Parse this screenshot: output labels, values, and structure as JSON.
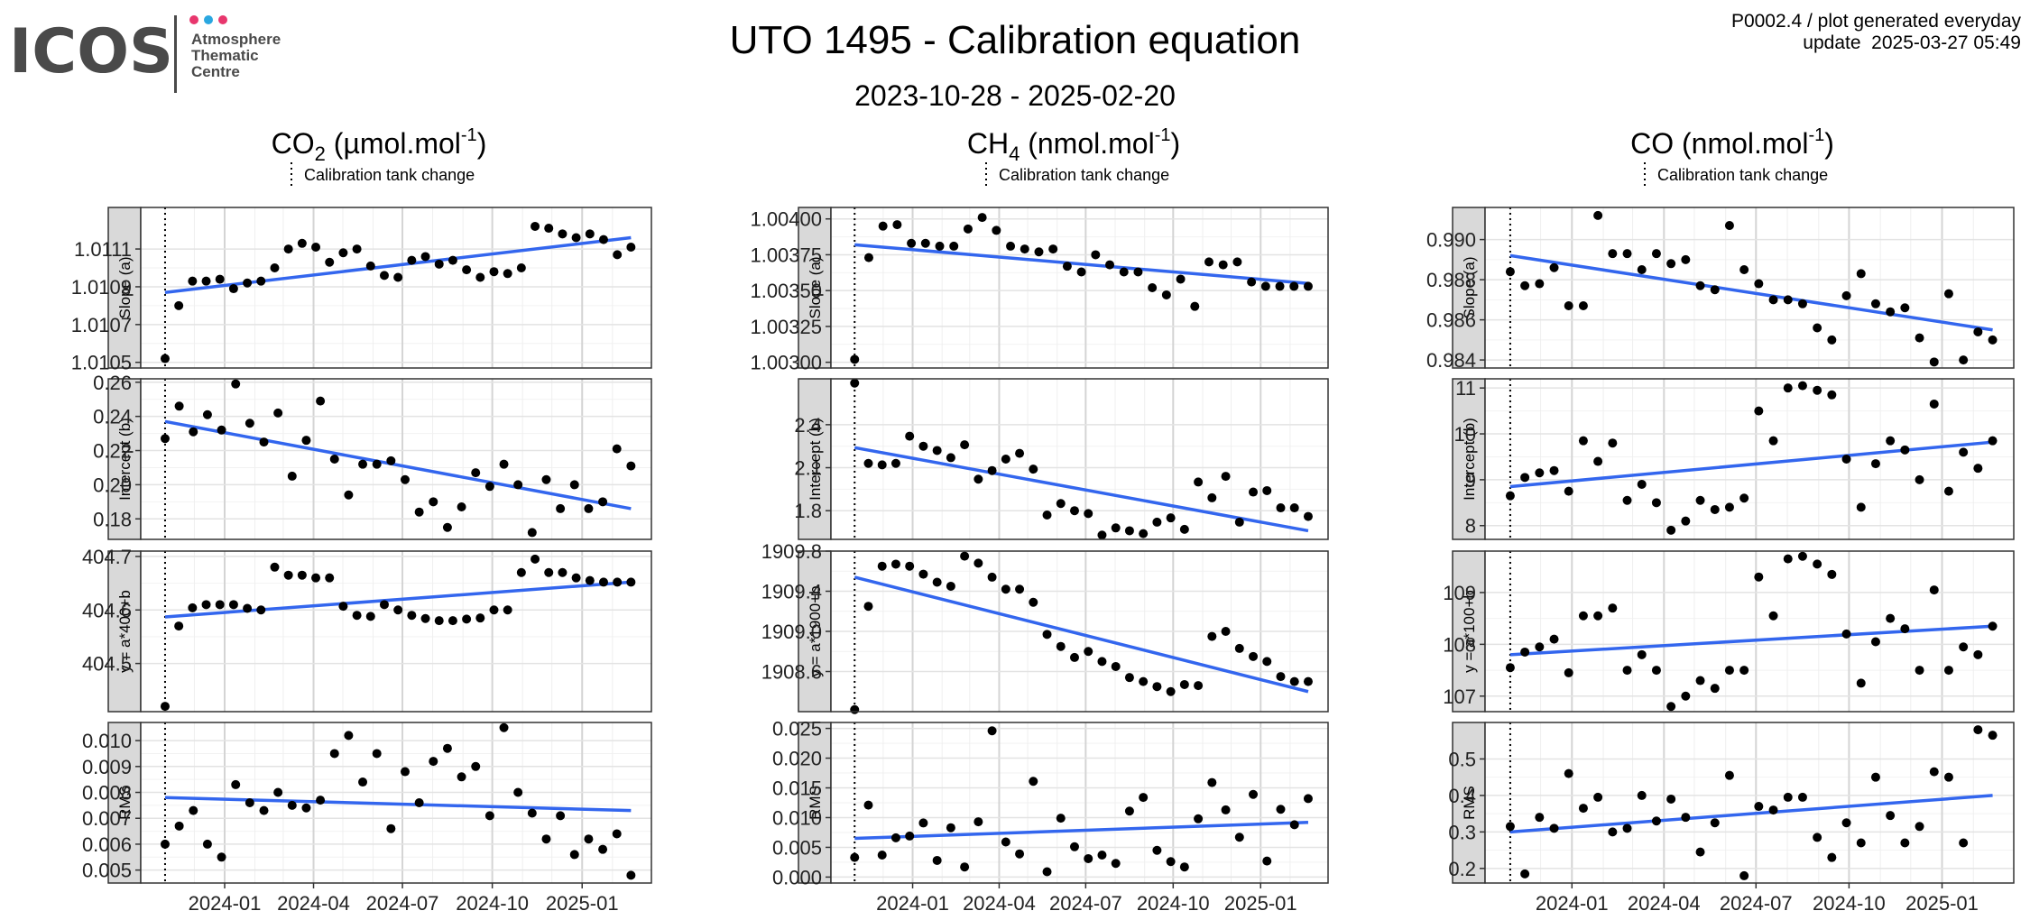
{
  "header": {
    "title": "UTO 1495 - Calibration equation",
    "subtitle": "2023-10-28 - 2025-02-20",
    "product_line": "P0002.4 / plot generated everyday",
    "update_line": "update  2025-03-27 05:49",
    "logo_text": "ICOS",
    "logo_subtext": [
      "Atmosphere",
      "Thematic",
      "Centre"
    ],
    "logo_dot_colors": [
      "#e8366d",
      "#2aa7e0",
      "#e8366d"
    ]
  },
  "legend_label": "Calibration tank change",
  "colors": {
    "fit_line": "#3366ee",
    "points": "#000000",
    "strip": "#d9d9d9",
    "grid": "#ebebeb"
  },
  "chart_data": {
    "type": "scatter",
    "x_axis": {
      "start": "2023-10-28",
      "end": "2025-02-20",
      "tick_labels": [
        "2024-01",
        "2024-04",
        "2024-07",
        "2024-10",
        "2025-01"
      ]
    },
    "calibration_tank_change": "2023-11-01",
    "columns": [
      {
        "species": "CO",
        "subscript": "2",
        "unit": "µmol.mol",
        "unit_exp": "-1",
        "rows": [
          {
            "strip": "Slope (a)",
            "ylim": [
              1.01047,
              1.01132
            ],
            "ticks": [
              1.0105,
              1.0107,
              1.0109,
              1.0111
            ],
            "fmt": 4,
            "fit": [
              1.01087,
              1.01116
            ],
            "values": [
              1.01052,
              1.0108,
              1.01093,
              1.01093,
              1.01094,
              1.01089,
              1.01092,
              1.01093,
              1.011,
              1.0111,
              1.01113,
              1.01111,
              1.01103,
              1.01108,
              1.0111,
              1.01101,
              1.01096,
              1.01095,
              1.01104,
              1.01106,
              1.01102,
              1.01104,
              1.01099,
              1.01095,
              1.01098,
              1.01097,
              1.011,
              1.01122,
              1.01121,
              1.01118,
              1.01116,
              1.01118,
              1.01115,
              1.01107,
              1.01111
            ]
          },
          {
            "strip": "Intercept (b)",
            "ylim": [
              0.168,
              0.262
            ],
            "ticks": [
              0.18,
              0.2,
              0.22,
              0.24,
              0.26
            ],
            "fmt": 2,
            "fit": [
              0.237,
              0.186
            ],
            "values": [
              0.227,
              0.246,
              0.231,
              0.241,
              0.232,
              0.259,
              0.236,
              0.225,
              0.242,
              0.205,
              0.226,
              0.249,
              0.215,
              0.194,
              0.212,
              0.212,
              0.214,
              0.203,
              0.184,
              0.19,
              0.175,
              0.187,
              0.207,
              0.199,
              0.212,
              0.2,
              0.172,
              0.203,
              0.186,
              0.2,
              0.186,
              0.19,
              0.221,
              0.211
            ]
          },
          {
            "strip": "y = a*400+b",
            "ylim": [
              404.41,
              404.71
            ],
            "ticks": [
              404.5,
              404.6,
              404.7
            ],
            "fmt": 1,
            "fit": [
              404.587,
              404.652
            ],
            "values": [
              404.42,
              404.57,
              404.604,
              404.61,
              404.61,
              404.61,
              404.603,
              404.6,
              404.68,
              404.665,
              404.665,
              404.66,
              404.66,
              404.607,
              404.59,
              404.588,
              404.61,
              404.6,
              404.59,
              404.584,
              404.58,
              404.58,
              404.583,
              404.585,
              404.6,
              404.6,
              404.67,
              404.695,
              404.67,
              404.67,
              404.66,
              404.655,
              404.652,
              404.652,
              404.652
            ]
          },
          {
            "strip": "RMS",
            "ylim": [
              0.0045,
              0.0107
            ],
            "ticks": [
              0.005,
              0.006,
              0.007,
              0.008,
              0.009,
              0.01
            ],
            "fmt": 3,
            "fit": [
              0.0078,
              0.0073
            ],
            "values": [
              0.006,
              0.0067,
              0.0073,
              0.006,
              0.0055,
              0.0083,
              0.0076,
              0.0073,
              0.008,
              0.0075,
              0.0074,
              0.0077,
              0.0095,
              0.0102,
              0.0084,
              0.0095,
              0.0066,
              0.0088,
              0.0076,
              0.0092,
              0.0097,
              0.0086,
              0.009,
              0.0071,
              0.0105,
              0.008,
              0.0072,
              0.0062,
              0.0071,
              0.0056,
              0.0062,
              0.0058,
              0.0064,
              0.0048
            ]
          }
        ]
      },
      {
        "species": "CH",
        "subscript": "4",
        "unit": "nmol.mol",
        "unit_exp": "-1",
        "rows": [
          {
            "strip": "Slope (a)",
            "ylim": [
              1.00296,
              1.00408
            ],
            "ticks": [
              1.003,
              1.00325,
              1.0035,
              1.00375,
              1.004
            ],
            "fmt": 5,
            "fit": [
              1.00382,
              1.00355
            ],
            "values": [
              1.00302,
              1.00373,
              1.00395,
              1.00396,
              1.00383,
              1.00383,
              1.00381,
              1.00381,
              1.00393,
              1.00401,
              1.00392,
              1.00381,
              1.00379,
              1.00377,
              1.00379,
              1.00367,
              1.00363,
              1.00375,
              1.00368,
              1.00363,
              1.00363,
              1.00352,
              1.00347,
              1.00358,
              1.00339,
              1.0037,
              1.00368,
              1.0037,
              1.00356,
              1.00353,
              1.00353,
              1.00353,
              1.00353
            ]
          },
          {
            "strip": "Intercept (b)",
            "ylim": [
              1.6,
              2.72
            ],
            "ticks": [
              1.8,
              2.1,
              2.4
            ],
            "fmt": 1,
            "fit": [
              2.24,
              1.66
            ],
            "values": [
              2.69,
              2.13,
              2.12,
              2.13,
              2.32,
              2.25,
              2.22,
              2.17,
              2.26,
              2.02,
              2.08,
              2.16,
              2.2,
              2.09,
              1.77,
              1.85,
              1.8,
              1.78,
              1.63,
              1.68,
              1.66,
              1.64,
              1.72,
              1.75,
              1.67,
              2.0,
              1.89,
              2.04,
              1.72,
              1.93,
              1.94,
              1.82,
              1.82,
              1.76
            ]
          },
          {
            "strip": "y = a*1900+b",
            "ylim": [
              1908.2,
              1909.8
            ],
            "ticks": [
              1908.6,
              1909.0,
              1909.4,
              1909.8
            ],
            "fmt": 1,
            "fit": [
              1909.54,
              1908.4
            ],
            "values": [
              1908.22,
              1909.25,
              1909.65,
              1909.67,
              1909.65,
              1909.57,
              1909.49,
              1909.45,
              1909.75,
              1909.68,
              1909.54,
              1909.42,
              1909.42,
              1909.29,
              1908.97,
              1908.85,
              1908.74,
              1908.8,
              1908.7,
              1908.65,
              1908.54,
              1908.5,
              1908.45,
              1908.4,
              1908.47,
              1908.46,
              1908.95,
              1909.0,
              1908.83,
              1908.75,
              1908.7,
              1908.55,
              1908.5,
              1908.5
            ]
          },
          {
            "strip": "RMS",
            "ylim": [
              -0.001,
              0.026
            ],
            "ticks": [
              0.0,
              0.005,
              0.01,
              0.015,
              0.02,
              0.025
            ],
            "fmt": 3,
            "fit": [
              0.0065,
              0.0092
            ],
            "values": [
              0.0033,
              0.0121,
              0.0037,
              0.0066,
              0.0069,
              0.0091,
              0.0028,
              0.0083,
              0.0017,
              0.0093,
              0.0246,
              0.0059,
              0.0039,
              0.0161,
              0.0009,
              0.0099,
              0.0051,
              0.0031,
              0.0037,
              0.0023,
              0.0111,
              0.0134,
              0.0045,
              0.0026,
              0.0017,
              0.0098,
              0.0159,
              0.0113,
              0.0067,
              0.0139,
              0.0027,
              0.0114,
              0.0088,
              0.0132
            ]
          }
        ]
      },
      {
        "species": "CO",
        "subscript": "",
        "unit": "nmol.mol",
        "unit_exp": "-1",
        "rows": [
          {
            "strip": "Slope (a)",
            "ylim": [
              0.9836,
              0.9916
            ],
            "ticks": [
              0.984,
              0.986,
              0.988,
              0.99
            ],
            "fmt": 3,
            "fit": [
              0.9892,
              0.9855
            ],
            "values": [
              0.9884,
              0.9877,
              0.9878,
              0.9886,
              0.9867,
              0.9867,
              0.9912,
              0.9893,
              0.9893,
              0.9885,
              0.9893,
              0.9888,
              0.989,
              0.9877,
              0.9875,
              0.9907,
              0.9885,
              0.9878,
              0.987,
              0.987,
              0.9868,
              0.9856,
              0.985,
              0.9872,
              0.9883,
              0.9868,
              0.9864,
              0.9866,
              0.9851,
              0.9839,
              0.9873,
              0.984,
              0.9854,
              0.985
            ]
          },
          {
            "strip": "Intercept (b)",
            "ylim": [
              7.7,
              11.2
            ],
            "ticks": [
              8,
              9,
              10,
              11
            ],
            "fmt": 0,
            "fit": [
              8.85,
              9.82
            ],
            "values": [
              8.65,
              9.05,
              9.15,
              9.2,
              8.75,
              9.85,
              9.4,
              9.8,
              8.55,
              8.9,
              8.5,
              7.9,
              8.1,
              8.55,
              8.35,
              8.4,
              8.6,
              10.5,
              9.85,
              11.0,
              11.05,
              10.95,
              10.85,
              9.45,
              8.4,
              9.35,
              9.85,
              9.65,
              9.0,
              10.65,
              8.75,
              9.6,
              9.25,
              9.85
            ]
          },
          {
            "strip": "y = a*100+b",
            "ylim": [
              106.7,
              109.8
            ],
            "ticks": [
              107,
              108,
              109
            ],
            "fmt": 0,
            "fit": [
              107.8,
              108.35
            ],
            "values": [
              107.55,
              107.85,
              107.95,
              108.1,
              107.45,
              108.55,
              108.55,
              108.7,
              107.5,
              107.8,
              107.5,
              106.8,
              107.0,
              107.3,
              107.15,
              107.5,
              107.5,
              109.3,
              108.55,
              109.65,
              109.7,
              109.55,
              109.35,
              108.2,
              107.25,
              108.05,
              108.5,
              108.3,
              107.5,
              109.05,
              107.5,
              107.95,
              107.8,
              108.35
            ]
          },
          {
            "strip": "RMS",
            "ylim": [
              0.16,
              0.6
            ],
            "ticks": [
              0.2,
              0.3,
              0.4,
              0.5
            ],
            "fmt": 1,
            "fit": [
              0.3,
              0.4
            ],
            "values": [
              0.315,
              0.185,
              0.34,
              0.31,
              0.46,
              0.365,
              0.395,
              0.3,
              0.31,
              0.4,
              0.33,
              0.39,
              0.34,
              0.245,
              0.325,
              0.455,
              0.18,
              0.37,
              0.36,
              0.395,
              0.395,
              0.285,
              0.23,
              0.325,
              0.27,
              0.45,
              0.345,
              0.27,
              0.315,
              0.465,
              0.45,
              0.27,
              0.58,
              0.565
            ]
          }
        ]
      }
    ]
  }
}
